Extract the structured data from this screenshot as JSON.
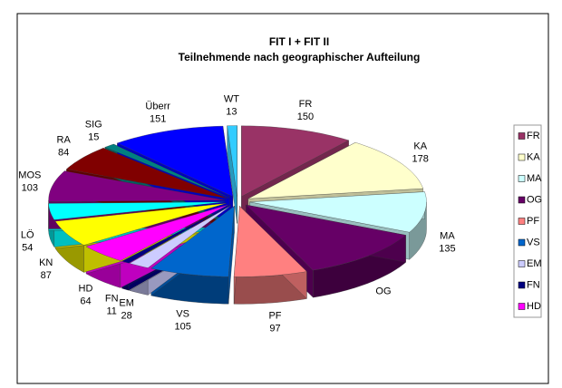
{
  "chart_data": {
    "type": "pie",
    "title": "FIT I + FIT II",
    "subtitle": "Teilnehmende nach geographischer Aufteilung",
    "categories": [
      "FR",
      "KA",
      "MA",
      "OG",
      "PF",
      "VS",
      "EM",
      "FN",
      "HD",
      "KN",
      "LÖ",
      "MOS",
      "RA",
      "SIG",
      "Überr",
      "WT"
    ],
    "values": [
      150,
      178,
      135,
      170,
      97,
      105,
      28,
      11,
      64,
      87,
      54,
      103,
      84,
      15,
      151,
      13
    ],
    "value_labels": [
      "150",
      "178",
      "135",
      null,
      "97",
      "105",
      "28",
      "11",
      "64",
      "87",
      "54",
      "103",
      "84",
      "15",
      "151",
      "13"
    ],
    "colors": [
      "#993366",
      "#ffffcc",
      "#ccffff",
      "#660066",
      "#ff8080",
      "#0066cc",
      "#ccccff",
      "#000080",
      "#ff00ff",
      "#ffff00",
      "#00ffff",
      "#800080",
      "#800000",
      "#008080",
      "#0000ff",
      "#33ccff"
    ],
    "legend": [
      "FR",
      "KA",
      "MA",
      "OG",
      "PF",
      "VS",
      "EM",
      "FN",
      "HD"
    ]
  }
}
